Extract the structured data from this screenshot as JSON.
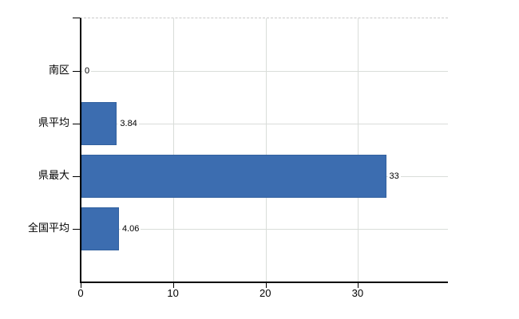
{
  "chart_data": {
    "type": "bar",
    "orientation": "horizontal",
    "title": "",
    "xlabel": "",
    "ylabel": "",
    "categories": [
      "南区",
      "県平均",
      "県最大",
      "全国平均"
    ],
    "values": [
      0,
      3.84,
      33,
      4.06
    ],
    "value_labels": [
      "0",
      "3.84",
      "33",
      "4.06"
    ],
    "xticks": [
      0,
      10,
      20,
      30
    ],
    "xtick_labels": [
      "0",
      "10",
      "20",
      "30"
    ],
    "xlim": [
      0,
      39.7
    ],
    "grid": true,
    "legend": false,
    "colors": {
      "bar_fill": "#3c6db0",
      "bar_border": "#32619f",
      "gridline": "#d9ddd9",
      "axis": "#000000",
      "top_border_dashed": "#c9c9c9",
      "text": "#000000",
      "background": "#ffffff"
    }
  }
}
